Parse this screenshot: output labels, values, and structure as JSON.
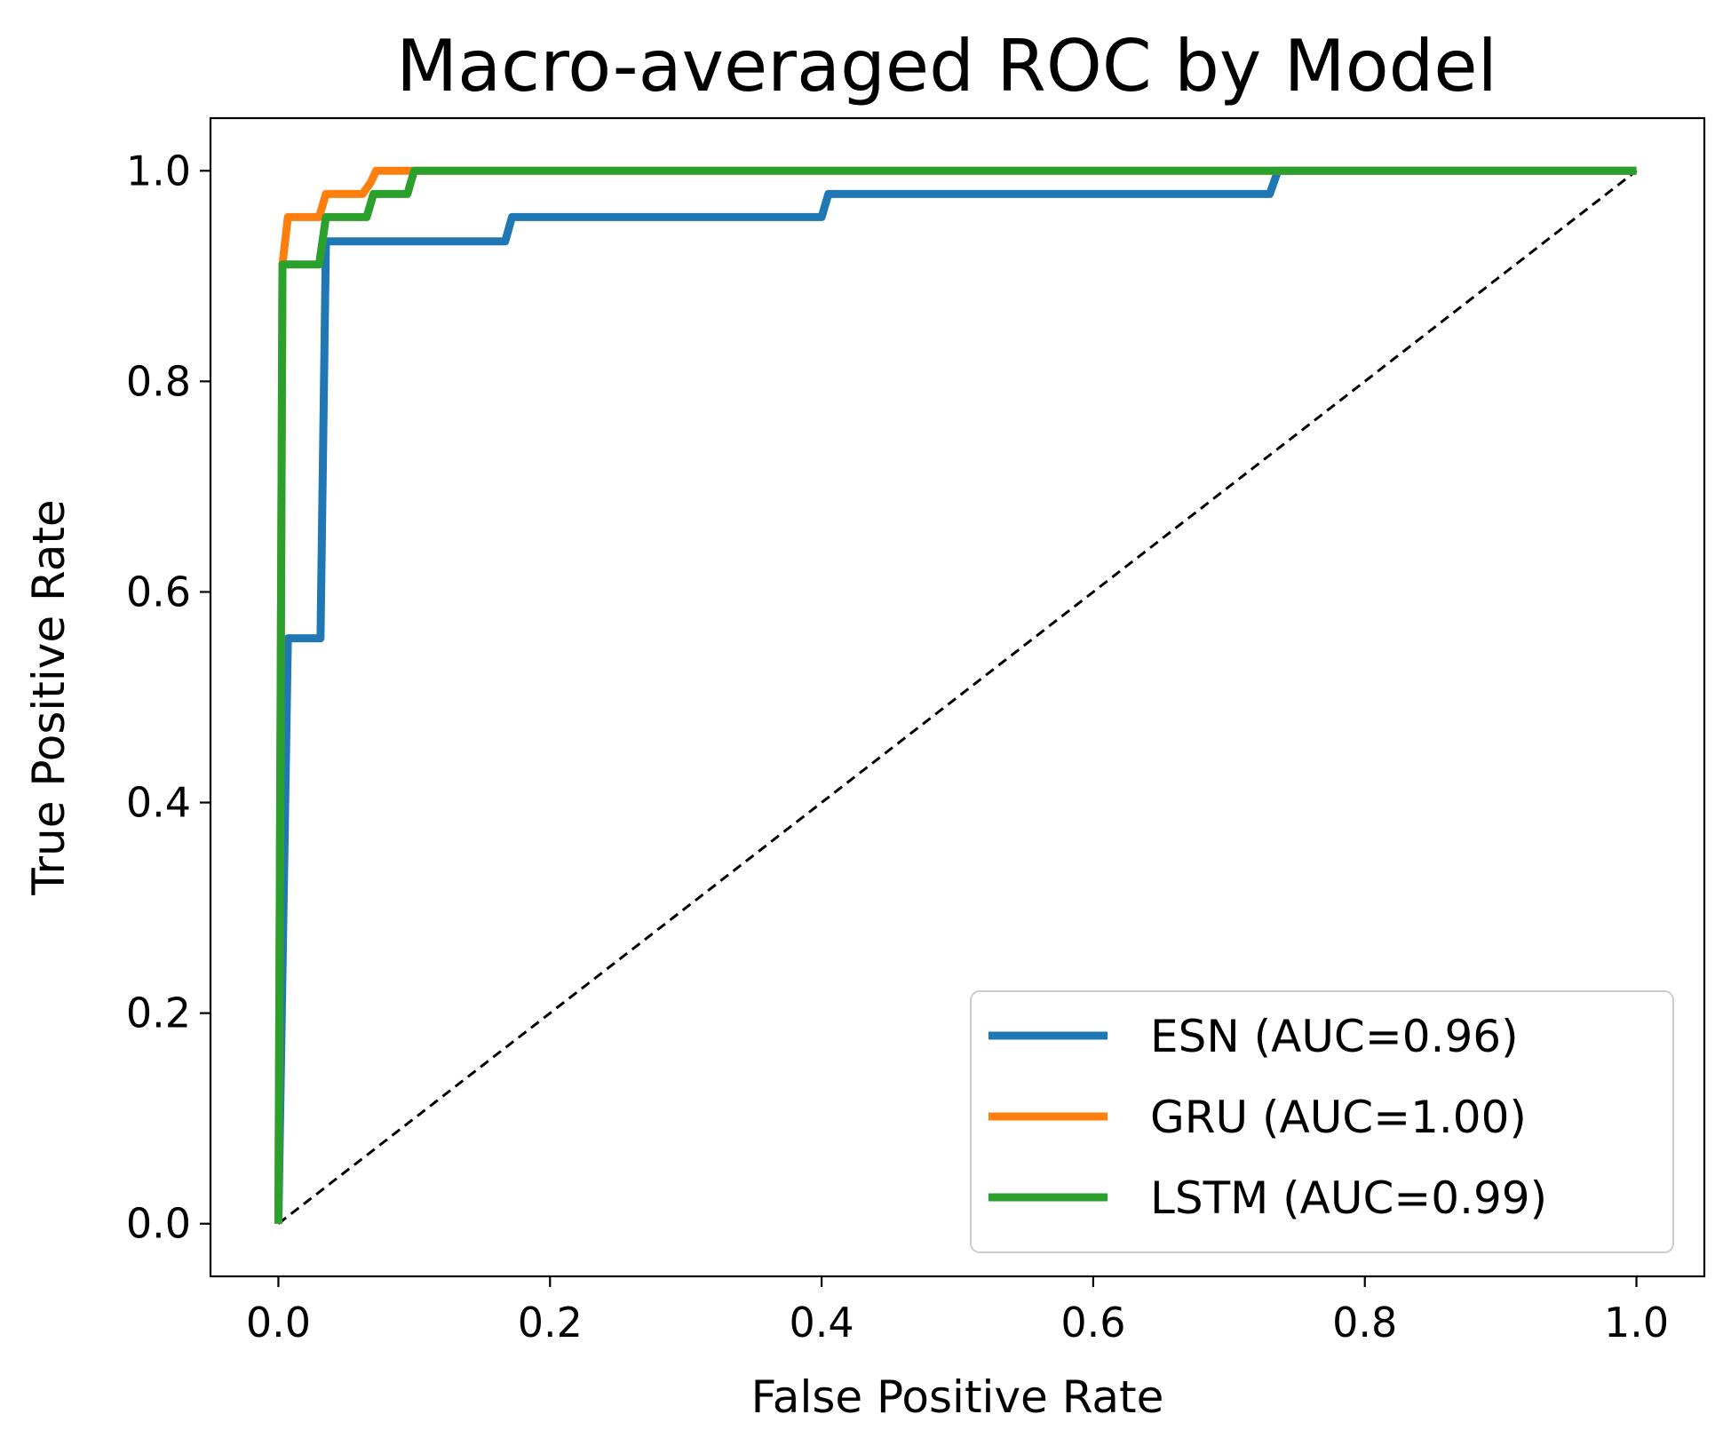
{
  "chart_data": {
    "type": "line",
    "title": "Macro-averaged ROC by Model",
    "xlabel": "False Positive Rate",
    "ylabel": "True Positive Rate",
    "xlim": [
      -0.05,
      1.05
    ],
    "ylim": [
      -0.05,
      1.05
    ],
    "xticks": [
      0.0,
      0.2,
      0.4,
      0.6,
      0.8,
      1.0
    ],
    "yticks": [
      0.0,
      0.2,
      0.4,
      0.6,
      0.8,
      1.0
    ],
    "tick_labels": [
      "0.0",
      "0.2",
      "0.4",
      "0.6",
      "0.8",
      "1.0"
    ],
    "grid": false,
    "legend_position": "lower-right",
    "reference_line": {
      "x": [
        0,
        1
      ],
      "y": [
        0,
        1
      ],
      "style": "dashed",
      "color": "#000000"
    },
    "series": [
      {
        "name": "ESN (AUC=0.96)",
        "color": "#1f77b4",
        "x": [
          0.0,
          0.007,
          0.007,
          0.031,
          0.035,
          0.167,
          0.172,
          0.4,
          0.405,
          0.73,
          0.736,
          1.0
        ],
        "y": [
          0.0,
          0.556,
          0.556,
          0.556,
          0.933,
          0.933,
          0.956,
          0.956,
          0.978,
          0.978,
          1.0,
          1.0
        ]
      },
      {
        "name": "GRU (AUC=1.00)",
        "color": "#ff7f0e",
        "x": [
          0.0,
          0.003,
          0.003,
          0.007,
          0.03,
          0.035,
          0.062,
          0.068,
          0.072,
          0.1,
          1.0
        ],
        "y": [
          0.0,
          0.911,
          0.911,
          0.956,
          0.956,
          0.978,
          0.978,
          0.989,
          1.0,
          1.0,
          1.0
        ]
      },
      {
        "name": "LSTM (AUC=0.99)",
        "color": "#2ca02c",
        "x": [
          0.0,
          0.003,
          0.003,
          0.03,
          0.035,
          0.065,
          0.07,
          0.095,
          0.1,
          1.0
        ],
        "y": [
          0.0,
          0.911,
          0.911,
          0.911,
          0.956,
          0.956,
          0.978,
          0.978,
          1.0,
          1.0
        ]
      }
    ]
  }
}
